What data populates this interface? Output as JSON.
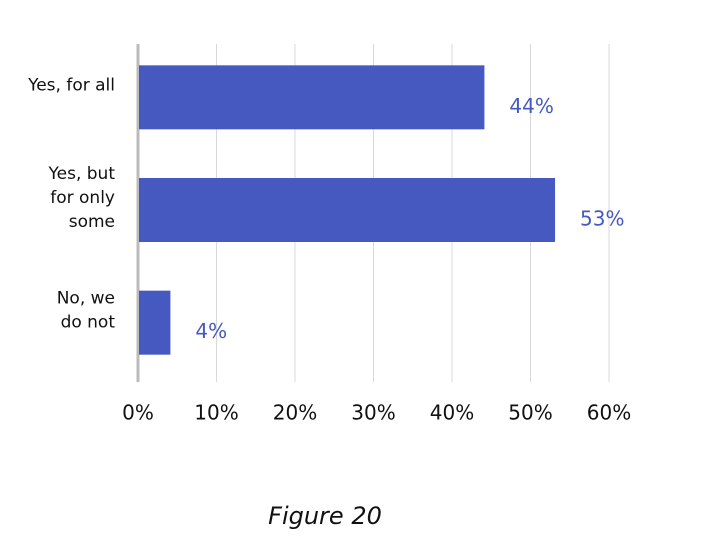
{
  "chart_data": {
    "type": "hbar",
    "categories": [
      "Yes, for all",
      "Yes, but\nfor only\nsome",
      "No, we\ndo not"
    ],
    "values": [
      44,
      53,
      4
    ],
    "value_labels": [
      "44%",
      "53%",
      "4%"
    ],
    "color": "#4659c0",
    "xlim": [
      0,
      60
    ],
    "xticks": [
      {
        "value": 0,
        "label": "0%"
      },
      {
        "value": 10,
        "label": "10%"
      },
      {
        "value": 20,
        "label": "20%"
      },
      {
        "value": 30,
        "label": "30%"
      },
      {
        "value": 40,
        "label": "40%"
      },
      {
        "value": 50,
        "label": "50%"
      },
      {
        "value": 60,
        "label": "60%"
      }
    ],
    "grid": true,
    "caption": "Figure 20"
  }
}
